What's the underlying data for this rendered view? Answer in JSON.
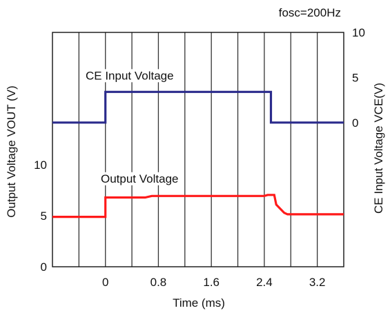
{
  "chart_data": {
    "type": "line",
    "annotation": "fosc=200Hz",
    "xlabel": "Time (ms)",
    "ylabel_left": "Output Voltage VOUT (V)",
    "ylabel_right": "CE Input Voltage VCE(V)",
    "x_ticks": [
      "0",
      "0.8",
      "1.6",
      "2.4",
      "3.2"
    ],
    "x_tick_values": [
      0,
      0.8,
      1.6,
      2.4,
      3.2
    ],
    "xlim": [
      -0.8,
      3.6
    ],
    "ylim_left": [
      0,
      23
    ],
    "ylim_right": [
      -16,
      10
    ],
    "y_ticks_left": [
      "0",
      "5",
      "10"
    ],
    "y_tick_values_left": [
      0,
      5,
      10
    ],
    "y_ticks_right": [
      "0",
      "5",
      "10"
    ],
    "y_tick_values_right": [
      0,
      5,
      10
    ],
    "grid": "vertical",
    "series": [
      {
        "name": "CE Input Voltage",
        "axis": "right",
        "color": "#2b2b8c",
        "points": [
          [
            -0.8,
            0
          ],
          [
            0,
            0
          ],
          [
            0,
            3.4
          ],
          [
            2.5,
            3.4
          ],
          [
            2.5,
            0
          ],
          [
            3.6,
            0
          ]
        ]
      },
      {
        "name": "Output Voltage",
        "axis": "left",
        "color": "#ff1a1a",
        "points": [
          [
            -0.8,
            4.9
          ],
          [
            0,
            4.9
          ],
          [
            0,
            6.8
          ],
          [
            0.6,
            6.8
          ],
          [
            0.7,
            6.95
          ],
          [
            2.4,
            6.95
          ],
          [
            2.45,
            7.05
          ],
          [
            2.55,
            7.05
          ],
          [
            2.58,
            6.1
          ],
          [
            2.7,
            5.3
          ],
          [
            2.75,
            5.15
          ],
          [
            3.6,
            5.15
          ]
        ]
      }
    ]
  }
}
